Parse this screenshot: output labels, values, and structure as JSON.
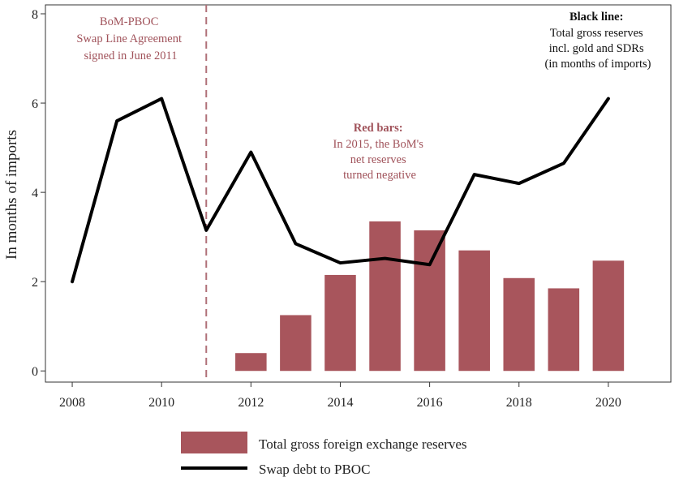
{
  "chart_data": {
    "type": "bar",
    "title": "",
    "xlabel": "",
    "ylabel": "In months of imports",
    "xlim": [
      2007.4,
      2021.4
    ],
    "ylim": [
      -0.25,
      8.2
    ],
    "xticks": [
      2008,
      2010,
      2012,
      2014,
      2016,
      2018,
      2020
    ],
    "yticks": [
      0,
      2,
      4,
      6,
      8
    ],
    "grid": false,
    "legend_position": "bottom",
    "series": [
      {
        "name": "Total gross foreign exchange reserves",
        "type": "bar",
        "color": "#a8555c",
        "x": [
          2012,
          2013,
          2014,
          2015,
          2016,
          2017,
          2018,
          2019,
          2020
        ],
        "values": [
          0.4,
          1.25,
          2.15,
          3.35,
          3.15,
          2.7,
          2.08,
          1.85,
          2.47
        ]
      },
      {
        "name": "Swap debt to PBOC",
        "type": "line",
        "color": "#000000",
        "x": [
          2008,
          2009,
          2010,
          2011,
          2012,
          2013,
          2014,
          2015,
          2016,
          2017,
          2018,
          2019,
          2020
        ],
        "values": [
          2.0,
          5.6,
          6.1,
          3.15,
          4.9,
          2.85,
          2.42,
          2.52,
          2.38,
          4.4,
          4.2,
          4.65,
          6.1
        ]
      }
    ],
    "vline": {
      "x": 2011,
      "style": "dashed",
      "color": "#b07078"
    },
    "annotations": {
      "swap_line": [
        "BoM-PBOC",
        "Swap Line Agreement",
        "signed in June 2011"
      ],
      "red_bars_title": "Red bars:",
      "red_bars": [
        "In 2015, the BoM's",
        "net reserves",
        "turned negative"
      ],
      "black_line_title": "Black line:",
      "black_line": [
        "Total gross reserves",
        "incl. gold and SDRs",
        "(in months of imports)"
      ]
    }
  }
}
